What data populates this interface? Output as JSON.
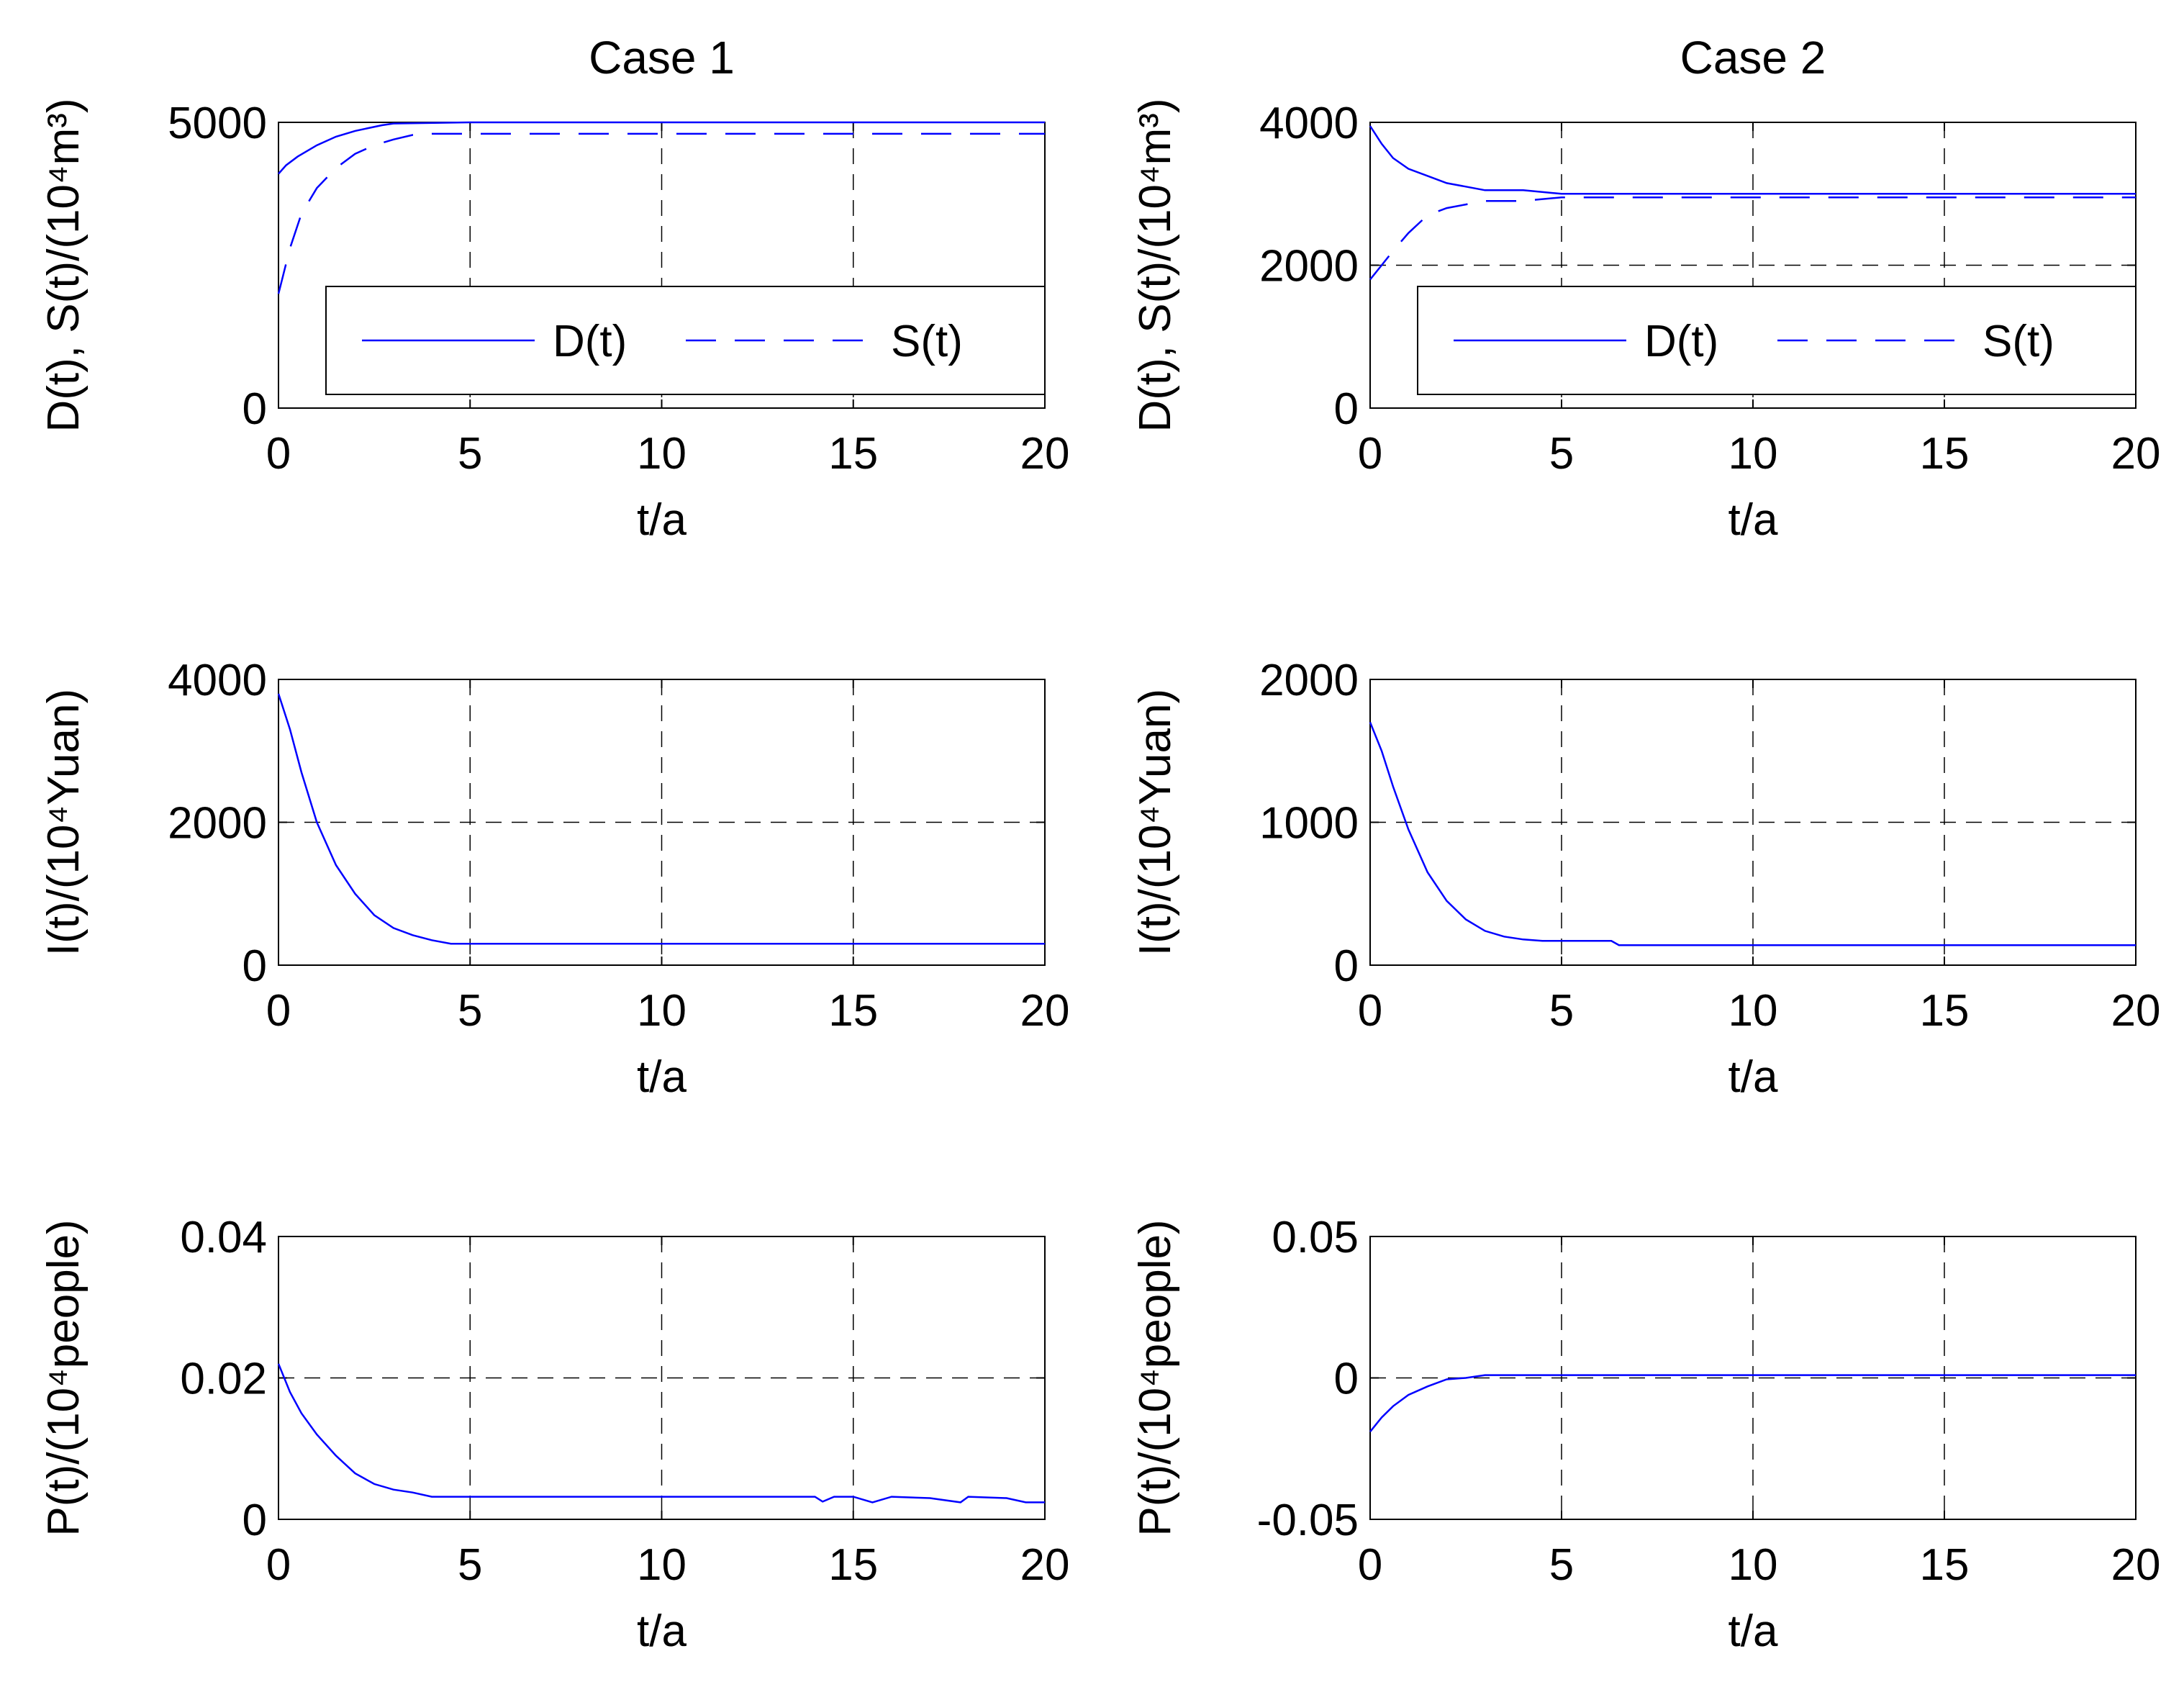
{
  "colors": {
    "series": "#0000ff",
    "axes": "#000000",
    "background": "#ffffff"
  },
  "chart_data": [
    {
      "id": "case1-ds",
      "type": "line",
      "title": "Case 1",
      "xlabel": "t/a",
      "ylabel": "D(t),  S(t)/(10⁴m³)",
      "xlim": [
        0,
        20
      ],
      "ylim": [
        0,
        5000
      ],
      "xticks": [
        "0",
        "5",
        "10",
        "15",
        "20"
      ],
      "yticks": [
        "0",
        "5000"
      ],
      "ytick_values": [
        0,
        5000
      ],
      "xgrid": [
        5,
        10,
        15
      ],
      "ygrid": [],
      "legend": {
        "placement": "lower-right",
        "entries": [
          "D(t)",
          "S(t)"
        ]
      },
      "series": [
        {
          "name": "D(t)",
          "style": "solid",
          "x": [
            0,
            0.2,
            0.5,
            1,
            1.5,
            2,
            2.7,
            3,
            5,
            10,
            15,
            20
          ],
          "y": [
            4100,
            4250,
            4400,
            4600,
            4750,
            4850,
            4950,
            4980,
            5000,
            5000,
            5000,
            5000
          ]
        },
        {
          "name": "S(t)",
          "style": "dashed",
          "x": [
            0,
            0.3,
            0.6,
            1,
            1.5,
            2,
            2.5,
            3,
            3.5,
            4,
            5,
            10,
            15,
            20
          ],
          "y": [
            2000,
            2800,
            3400,
            3850,
            4200,
            4450,
            4600,
            4700,
            4780,
            4800,
            4800,
            4800,
            4800,
            4800
          ]
        }
      ]
    },
    {
      "id": "case2-ds",
      "type": "line",
      "title": "Case 2",
      "xlabel": "t/a",
      "ylabel": "D(t),  S(t)/(10⁴m³)",
      "xlim": [
        0,
        20
      ],
      "ylim": [
        0,
        4000
      ],
      "xticks": [
        "0",
        "5",
        "10",
        "15",
        "20"
      ],
      "yticks": [
        "0",
        "2000",
        "4000"
      ],
      "ytick_values": [
        0,
        2000,
        4000
      ],
      "xgrid": [
        5,
        10,
        15
      ],
      "ygrid": [
        2000
      ],
      "legend": {
        "placement": "lower-right",
        "entries": [
          "D(t)",
          "S(t)"
        ]
      },
      "series": [
        {
          "name": "D(t)",
          "style": "solid",
          "x": [
            0,
            0.3,
            0.6,
            1,
            1.5,
            2,
            2.5,
            3,
            4,
            5,
            10,
            15,
            20
          ],
          "y": [
            3950,
            3700,
            3500,
            3350,
            3250,
            3150,
            3100,
            3050,
            3050,
            3000,
            3000,
            3000,
            3000
          ]
        },
        {
          "name": "S(t)",
          "style": "dashed",
          "x": [
            0,
            0.3,
            0.6,
            1,
            1.5,
            2,
            2.5,
            3,
            4,
            5,
            10,
            15,
            20
          ],
          "y": [
            1800,
            2000,
            2200,
            2450,
            2700,
            2800,
            2850,
            2900,
            2900,
            2950,
            2950,
            2950,
            2950
          ]
        }
      ]
    },
    {
      "id": "case1-i",
      "type": "line",
      "xlabel": "t/a",
      "ylabel": "I(t)/(10⁴Yuan)",
      "xlim": [
        0,
        20
      ],
      "ylim": [
        0,
        4000
      ],
      "xticks": [
        "0",
        "5",
        "10",
        "15",
        "20"
      ],
      "yticks": [
        "0",
        "2000",
        "4000"
      ],
      "ytick_values": [
        0,
        2000,
        4000
      ],
      "xgrid": [
        5,
        10,
        15
      ],
      "ygrid": [
        2000
      ],
      "series": [
        {
          "name": "I(t)",
          "style": "solid",
          "x": [
            0,
            0.3,
            0.6,
            1,
            1.5,
            2,
            2.5,
            3,
            3.5,
            4,
            4.5,
            5,
            10,
            15,
            20
          ],
          "y": [
            3800,
            3300,
            2700,
            2000,
            1400,
            1000,
            700,
            520,
            420,
            350,
            300,
            300,
            300,
            300,
            300
          ]
        }
      ]
    },
    {
      "id": "case2-i",
      "type": "line",
      "xlabel": "t/a",
      "ylabel": "I(t)/(10⁴Yuan)",
      "xlim": [
        0,
        20
      ],
      "ylim": [
        0,
        2000
      ],
      "xticks": [
        "0",
        "5",
        "10",
        "15",
        "20"
      ],
      "yticks": [
        "0",
        "1000",
        "2000"
      ],
      "ytick_values": [
        0,
        1000,
        2000
      ],
      "xgrid": [
        5,
        10,
        15
      ],
      "ygrid": [
        1000
      ],
      "series": [
        {
          "name": "I(t)",
          "style": "solid",
          "x": [
            0,
            0.3,
            0.6,
            1,
            1.5,
            2,
            2.5,
            3,
            3.5,
            4,
            4.5,
            6.3,
            6.5,
            10,
            15,
            20
          ],
          "y": [
            1700,
            1500,
            1250,
            950,
            650,
            450,
            320,
            240,
            200,
            180,
            170,
            170,
            140,
            140,
            140,
            140
          ]
        }
      ]
    },
    {
      "id": "case1-p",
      "type": "line",
      "xlabel": "t/a",
      "ylabel": "P(t)/(10⁴people)",
      "xlim": [
        0,
        20
      ],
      "ylim": [
        0,
        0.04
      ],
      "xticks": [
        "0",
        "5",
        "10",
        "15",
        "20"
      ],
      "yticks": [
        "0",
        "0.02",
        "0.04"
      ],
      "ytick_values": [
        0,
        0.02,
        0.04
      ],
      "xgrid": [
        5,
        10,
        15
      ],
      "ygrid": [
        0.02
      ],
      "series": [
        {
          "name": "P(t)",
          "style": "solid",
          "x": [
            0,
            0.3,
            0.6,
            1,
            1.5,
            2,
            2.5,
            3,
            3.5,
            4,
            5,
            10,
            14,
            14.2,
            14.5,
            15,
            15.5,
            16,
            17,
            17.8,
            18,
            19,
            19.5,
            20
          ],
          "y": [
            0.022,
            0.018,
            0.015,
            0.012,
            0.009,
            0.0065,
            0.005,
            0.0042,
            0.0038,
            0.0032,
            0.0032,
            0.0032,
            0.0032,
            0.0025,
            0.0032,
            0.0032,
            0.0024,
            0.0032,
            0.003,
            0.0024,
            0.0032,
            0.003,
            0.0024,
            0.0024
          ]
        }
      ]
    },
    {
      "id": "case2-p",
      "type": "line",
      "xlabel": "t/a",
      "ylabel": "P(t)/(10⁴people)",
      "xlim": [
        0,
        20
      ],
      "ylim": [
        -0.05,
        0.05
      ],
      "xticks": [
        "0",
        "5",
        "10",
        "15",
        "20"
      ],
      "yticks": [
        "-0.05",
        "0",
        "0.05"
      ],
      "ytick_values": [
        -0.05,
        0,
        0.05
      ],
      "xgrid": [
        5,
        10,
        15
      ],
      "ygrid": [
        0
      ],
      "series": [
        {
          "name": "P(t)",
          "style": "solid",
          "x": [
            0,
            0.3,
            0.6,
            1,
            1.5,
            2,
            2.5,
            3,
            5,
            10,
            15,
            20
          ],
          "y": [
            -0.019,
            -0.014,
            -0.01,
            -0.006,
            -0.003,
            -0.0005,
            0,
            0.001,
            0.001,
            0.001,
            0.001,
            0.001
          ]
        }
      ]
    }
  ]
}
